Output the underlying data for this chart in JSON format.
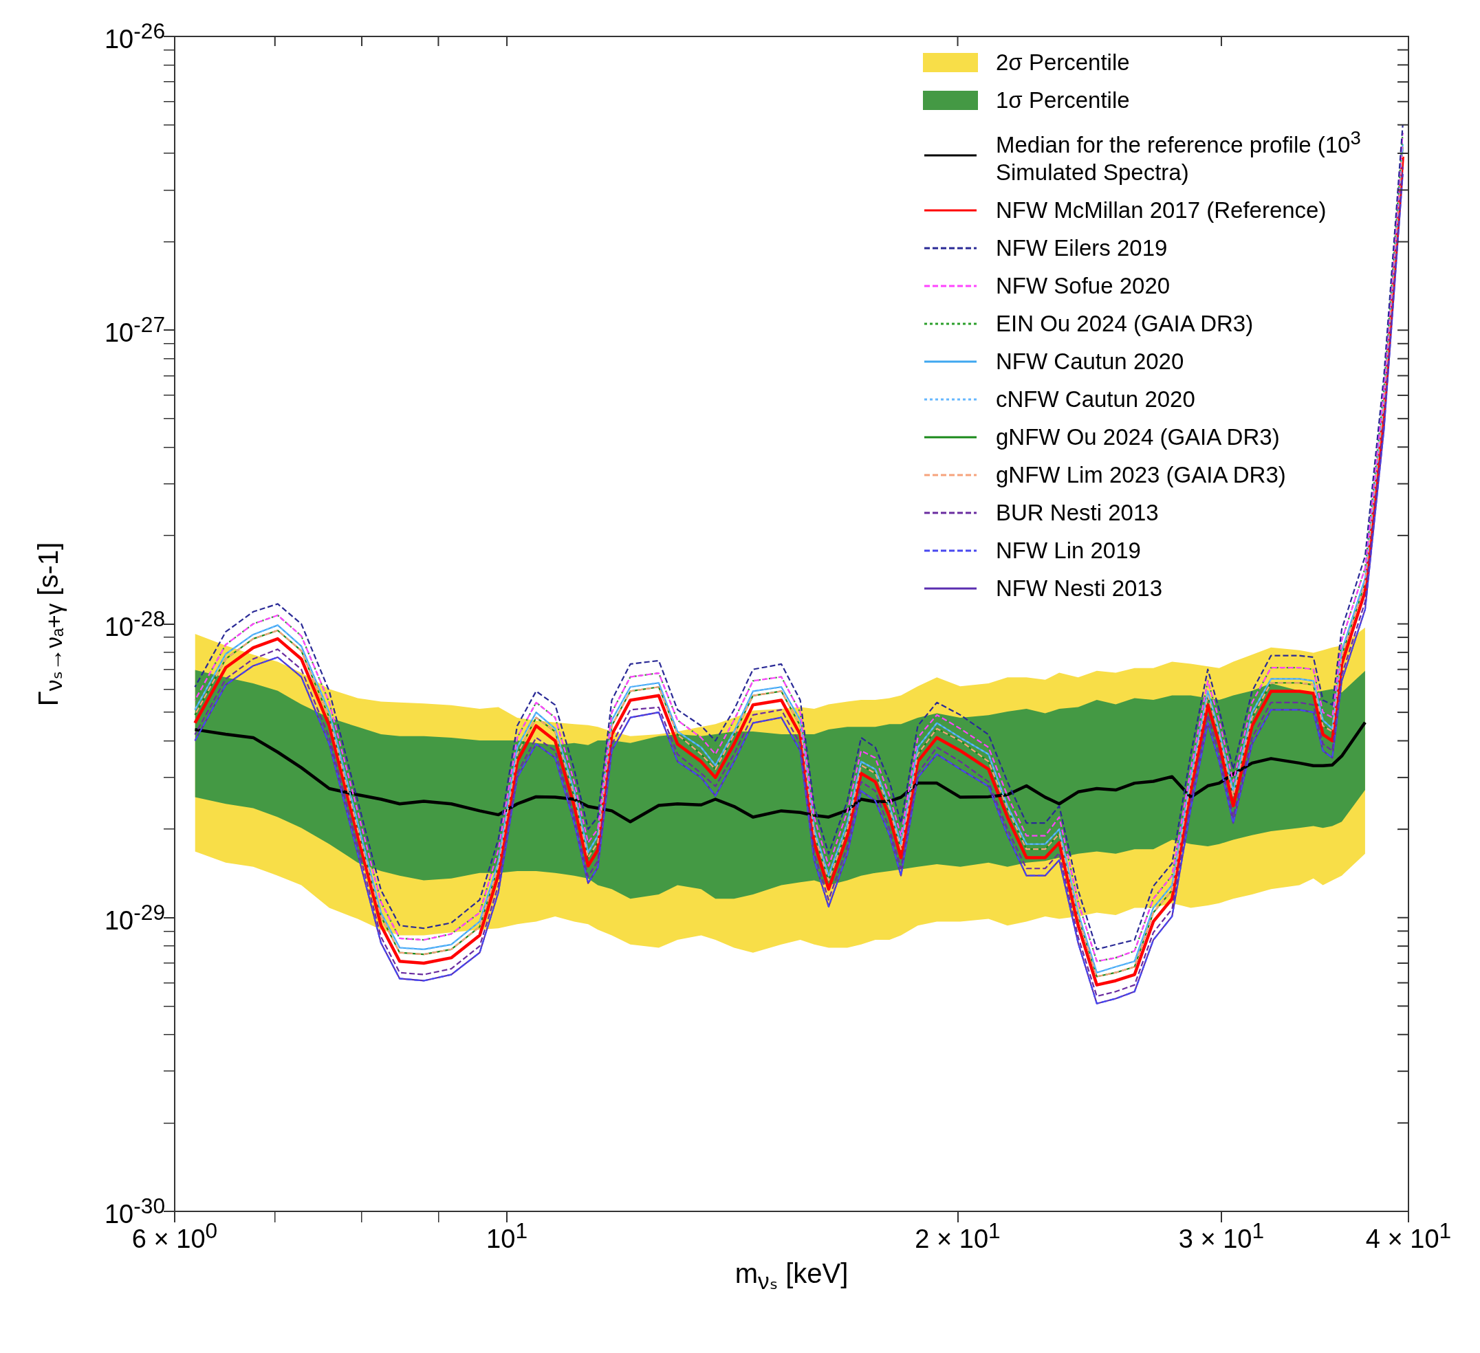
{
  "chart_data": {
    "type": "line",
    "xlabel": "m$_{νₛ}$ [keV]",
    "ylabel": "Γ$_{νₛ→νₐ+γ}$ [s-1]",
    "log": "xy",
    "grid": false,
    "legend": "top right",
    "xlim": [
      6,
      40
    ],
    "ylim": [
      1e-30,
      1e-26
    ],
    "xticks": [
      {
        "value": 6,
        "label": "6 × 10$^{0}$"
      },
      {
        "value": 7,
        "label": null
      },
      {
        "value": 8,
        "label": null
      },
      {
        "value": 9,
        "label": null
      },
      {
        "value": 10,
        "label": "10$^{1}$"
      },
      {
        "value": 20,
        "label": "2 × 10$^{1}$"
      },
      {
        "value": 30,
        "label": "3 × 10$^{1}$"
      },
      {
        "value": 40,
        "label": "4 × 10$^{1}$"
      }
    ],
    "yticks": [
      {
        "value": 1e-30,
        "label": "10$^{-30}$"
      },
      {
        "value": 2e-30,
        "label": null
      },
      {
        "value": 3e-30,
        "label": null
      },
      {
        "value": 4e-30,
        "label": null
      },
      {
        "value": 5e-30,
        "label": null
      },
      {
        "value": 6e-30,
        "label": null
      },
      {
        "value": 7e-30,
        "label": null
      },
      {
        "value": 8e-30,
        "label": null
      },
      {
        "value": 9e-30,
        "label": null
      },
      {
        "value": 1e-29,
        "label": "10$^{-29}$"
      },
      {
        "value": 2e-29,
        "label": null
      },
      {
        "value": 3e-29,
        "label": null
      },
      {
        "value": 4e-29,
        "label": null
      },
      {
        "value": 5e-29,
        "label": null
      },
      {
        "value": 6e-29,
        "label": null
      },
      {
        "value": 7e-29,
        "label": null
      },
      {
        "value": 8e-29,
        "label": null
      },
      {
        "value": 9e-29,
        "label": null
      },
      {
        "value": 1e-28,
        "label": "10$^{-28}$"
      },
      {
        "value": 2e-28,
        "label": null
      },
      {
        "value": 3e-28,
        "label": null
      },
      {
        "value": 4e-28,
        "label": null
      },
      {
        "value": 5e-28,
        "label": null
      },
      {
        "value": 6e-28,
        "label": null
      },
      {
        "value": 7e-28,
        "label": null
      },
      {
        "value": 8e-28,
        "label": null
      },
      {
        "value": 9e-28,
        "label": null
      },
      {
        "value": 1e-27,
        "label": "10$^{-27}$"
      },
      {
        "value": 2e-27,
        "label": null
      },
      {
        "value": 3e-27,
        "label": null
      },
      {
        "value": 4e-27,
        "label": null
      },
      {
        "value": 5e-27,
        "label": null
      },
      {
        "value": 6e-27,
        "label": null
      },
      {
        "value": 7e-27,
        "label": null
      },
      {
        "value": 8e-27,
        "label": null
      },
      {
        "value": 9e-27,
        "label": null
      },
      {
        "value": 1e-26,
        "label": "10$^{-26}$"
      }
    ],
    "x": [
      6.19,
      6.49,
      6.77,
      7.03,
      7.29,
      7.61,
      7.95,
      8.24,
      8.48,
      8.8,
      9.18,
      9.59,
      9.87,
      10.16,
      10.46,
      10.77,
      11.09,
      11.33,
      11.5,
      11.75,
      12.09,
      12.63,
      13.0,
      13.48,
      13.78,
      14.18,
      14.6,
      15.25,
      15.7,
      16.04,
      16.4,
      16.88,
      17.24,
      17.62,
      18.01,
      18.33,
      18.81,
      19.37,
      20.08,
      20.97,
      21.59,
      22.23,
      22.88,
      23.38,
      24.07,
      24.77,
      25.5,
      26.25,
      27.02,
      27.81,
      28.62,
      29.38,
      29.9,
      30.55,
      31.45,
      32.38,
      33.82,
      34.56,
      35.07,
      35.58,
      36.1,
      37.42,
      38.52,
      39.65
    ],
    "series": [
      {
        "name": "2σ Percentile",
        "type": "area",
        "color": "#f8de48",
        "values": [
          null,
          null,
          null,
          null,
          null,
          null,
          null,
          null,
          null,
          null,
          null,
          null,
          null,
          null,
          null,
          null,
          null,
          null,
          null,
          null,
          null,
          null,
          null,
          null,
          null,
          null,
          null,
          null,
          null,
          null,
          null,
          null,
          null,
          null,
          null,
          null,
          null,
          null,
          null,
          null,
          null,
          null,
          null,
          null,
          null,
          null,
          null,
          null,
          null,
          null,
          null,
          null,
          null,
          null,
          null,
          null,
          null,
          null,
          null,
          null,
          null,
          null,
          null,
          null
        ],
        "upper": [
          9.25e-29,
          8.44e-29,
          7.86e-29,
          7.43e-29,
          6.82e-29,
          6e-29,
          5.59e-29,
          5.44e-29,
          5.4e-29,
          5.36e-29,
          5.29e-29,
          5.14e-29,
          5.21e-29,
          4.79e-29,
          4.69e-29,
          4.62e-29,
          4.56e-29,
          4.52e-29,
          4.46e-29,
          4.3e-29,
          4.15e-29,
          4.21e-29,
          4.3e-29,
          4.46e-29,
          4.56e-29,
          4.79e-29,
          5.07e-29,
          5.14e-29,
          5.21e-29,
          5.14e-29,
          5.32e-29,
          5.44e-29,
          5.51e-29,
          5.51e-29,
          5.59e-29,
          5.71e-29,
          6.13e-29,
          6.58e-29,
          6.13e-29,
          6.27e-29,
          6.58e-29,
          6.58e-29,
          6.45e-29,
          6.82e-29,
          6.58e-29,
          6.92e-29,
          6.82e-29,
          7.07e-29,
          7.07e-29,
          7.43e-29,
          7.32e-29,
          7.17e-29,
          7.07e-29,
          7.43e-29,
          7.86e-29,
          8.32e-29,
          8.14e-29,
          7.97e-29,
          8.14e-29,
          8.32e-29,
          8.44e-29,
          9.72e-29,
          null,
          null
        ],
        "lower": [
          1.68e-29,
          1.54e-29,
          1.49e-29,
          1.39e-29,
          1.29e-29,
          1.08e-29,
          9.9e-30,
          9.1e-30,
          8.7e-30,
          8.7e-30,
          8.9e-30,
          9.1e-30,
          9.2e-30,
          9.5e-30,
          9.7e-30,
          1.01e-29,
          9.7e-30,
          9.5e-30,
          9.1e-30,
          8.7e-30,
          8.1e-30,
          7.9e-30,
          8.4e-30,
          8.7e-30,
          8.4e-30,
          7.9e-30,
          7.6e-30,
          8.1e-30,
          8.4e-30,
          8.1e-30,
          7.9e-30,
          7.9e-30,
          8.1e-30,
          8.4e-30,
          8.4e-30,
          8.7e-30,
          9.4e-30,
          9.7e-30,
          9.7e-30,
          9.9e-30,
          9.4e-30,
          9.7e-30,
          1.01e-29,
          9.9e-30,
          1.01e-29,
          1.04e-29,
          1.02e-29,
          1.08e-29,
          1.08e-29,
          1.12e-29,
          1.08e-29,
          1.1e-29,
          1.12e-29,
          1.16e-29,
          1.2e-29,
          1.25e-29,
          1.29e-29,
          1.36e-29,
          1.29e-29,
          1.34e-29,
          1.39e-29,
          1.65e-29,
          null,
          null
        ]
      },
      {
        "name": "1σ Percentile",
        "type": "area",
        "color": "#449944",
        "values": [
          null,
          null,
          null,
          null,
          null,
          null,
          null,
          null,
          null,
          null,
          null,
          null,
          null,
          null,
          null,
          null,
          null,
          null,
          null,
          null,
          null,
          null,
          null,
          null,
          null,
          null,
          null,
          null,
          null,
          null,
          null,
          null,
          null,
          null,
          null,
          null,
          null,
          null,
          null,
          null,
          null,
          null,
          null,
          null,
          null,
          null,
          null,
          null,
          null,
          null,
          null,
          null,
          null,
          null,
          null,
          null,
          null,
          null,
          null,
          null,
          null,
          null,
          null,
          null
        ],
        "upper": [
          6.97e-29,
          6.58e-29,
          6.27e-29,
          5.92e-29,
          5.32e-29,
          4.79e-29,
          4.46e-29,
          4.21e-29,
          4.15e-29,
          4.15e-29,
          4.1e-29,
          4.01e-29,
          4.01e-29,
          4.01e-29,
          3.93e-29,
          3.87e-29,
          3.93e-29,
          3.87e-29,
          4.01e-29,
          4.01e-29,
          3.93e-29,
          4.15e-29,
          4.21e-29,
          4.15e-29,
          4.21e-29,
          4.3e-29,
          4.3e-29,
          4.21e-29,
          4.21e-29,
          4.21e-29,
          4.37e-29,
          4.46e-29,
          4.46e-29,
          4.46e-29,
          4.56e-29,
          4.56e-29,
          4.79e-29,
          4.96e-29,
          4.79e-29,
          4.89e-29,
          5.03e-29,
          5.14e-29,
          4.96e-29,
          5.14e-29,
          5.21e-29,
          5.51e-29,
          5.32e-29,
          5.59e-29,
          5.51e-29,
          5.71e-29,
          5.71e-29,
          5.59e-29,
          5.51e-29,
          5.71e-29,
          5.92e-29,
          6.27e-29,
          5.92e-29,
          5.84e-29,
          5.92e-29,
          6e-29,
          5.84e-29,
          6.92e-29,
          null,
          null
        ],
        "lower": [
          2.57e-29,
          2.44e-29,
          2.36e-29,
          2.2e-29,
          2.02e-29,
          1.78e-29,
          1.54e-29,
          1.44e-29,
          1.39e-29,
          1.34e-29,
          1.36e-29,
          1.42e-29,
          1.42e-29,
          1.44e-29,
          1.44e-29,
          1.42e-29,
          1.39e-29,
          1.36e-29,
          1.29e-29,
          1.25e-29,
          1.16e-29,
          1.2e-29,
          1.29e-29,
          1.25e-29,
          1.16e-29,
          1.16e-29,
          1.2e-29,
          1.29e-29,
          1.32e-29,
          1.34e-29,
          1.29e-29,
          1.34e-29,
          1.39e-29,
          1.42e-29,
          1.44e-29,
          1.46e-29,
          1.49e-29,
          1.52e-29,
          1.49e-29,
          1.54e-29,
          1.49e-29,
          1.54e-29,
          1.56e-29,
          1.6e-29,
          1.65e-29,
          1.68e-29,
          1.65e-29,
          1.71e-29,
          1.71e-29,
          1.84e-29,
          1.78e-29,
          1.75e-29,
          1.78e-29,
          1.84e-29,
          1.91e-29,
          1.97e-29,
          2.02e-29,
          2.05e-29,
          2.02e-29,
          2.05e-29,
          2.12e-29,
          2.72e-29,
          null,
          null
        ]
      },
      {
        "name": "Median for the reference profile (10$^{3}$ Simulated Spectra)",
        "type": "line",
        "color": "#000000",
        "line_style": "solid",
        "values": [
          4.37e-29,
          4.21e-29,
          4.1e-29,
          3.66e-29,
          3.24e-29,
          2.75e-29,
          2.62e-29,
          2.53e-29,
          2.44e-29,
          2.49e-29,
          2.44e-29,
          2.31e-29,
          2.24e-29,
          2.44e-29,
          2.58e-29,
          2.57e-29,
          2.53e-29,
          2.39e-29,
          2.36e-29,
          2.31e-29,
          2.12e-29,
          2.41e-29,
          2.44e-29,
          2.42e-29,
          2.53e-29,
          2.39e-29,
          2.2e-29,
          2.31e-29,
          2.28e-29,
          2.23e-29,
          2.2e-29,
          2.32e-29,
          2.53e-29,
          2.48e-29,
          2.49e-29,
          2.57e-29,
          2.87e-29,
          2.87e-29,
          2.57e-29,
          2.58e-29,
          2.62e-29,
          2.81e-29,
          2.57e-29,
          2.44e-29,
          2.68e-29,
          2.75e-29,
          2.72e-29,
          2.87e-29,
          2.91e-29,
          3.02e-29,
          2.57e-29,
          2.81e-29,
          2.87e-29,
          3.08e-29,
          3.36e-29,
          3.48e-29,
          3.36e-29,
          3.29e-29,
          3.29e-29,
          3.31e-29,
          3.55e-29,
          4.62e-29,
          null,
          null
        ]
      },
      {
        "name": "NFW McMillan 2017 (Reference)",
        "type": "line",
        "color": "#ff0000",
        "line_style": "solid",
        "values": [
          4.6e-29,
          7.1e-29,
          8.3e-29,
          8.9e-29,
          7.6e-29,
          4.5e-29,
          1.9e-29,
          9.4e-30,
          7.1e-30,
          7e-30,
          7.3e-30,
          8.7e-30,
          1.4e-29,
          3.4e-29,
          4.5e-29,
          4e-29,
          2.4e-29,
          1.5e-29,
          1.7e-29,
          4.2e-29,
          5.5e-29,
          5.7e-29,
          3.9e-29,
          3.4e-29,
          3e-29,
          3.9e-29,
          5.3e-29,
          5.5e-29,
          4.2e-29,
          1.8e-29,
          1.25e-29,
          1.9e-29,
          3.1e-29,
          2.9e-29,
          2.2e-29,
          1.6e-29,
          3.4e-29,
          4.1e-29,
          3.7e-29,
          3.2e-29,
          2.2e-29,
          1.6e-29,
          1.6e-29,
          1.8e-29,
          9.4e-30,
          5.9e-30,
          6.1e-30,
          6.4e-30,
          9.7e-30,
          1.16e-29,
          2.7e-29,
          5.3e-29,
          3.9e-29,
          2.4e-29,
          4.5e-29,
          5.9e-29,
          5.9e-29,
          5.8e-29,
          4.2e-29,
          4e-29,
          7.3e-29,
          1.29e-28,
          5.3e-28,
          3.9e-27
        ]
      },
      {
        "name": "NFW Eilers 2019",
        "type": "line",
        "color": "#2a2a96",
        "line_style": "dashed",
        "values": [
          6.1e-29,
          9.4e-29,
          1.1e-28,
          1.17e-28,
          1e-28,
          5.9e-29,
          2.5e-29,
          1.24e-29,
          9.4e-30,
          9.2e-30,
          9.6e-30,
          1.15e-29,
          1.85e-29,
          4.5e-29,
          5.9e-29,
          5.3e-29,
          3.2e-29,
          2e-29,
          2.2e-29,
          5.5e-29,
          7.3e-29,
          7.5e-29,
          5.1e-29,
          4.5e-29,
          4e-29,
          5.1e-29,
          7e-29,
          7.3e-29,
          5.5e-29,
          2.4e-29,
          1.65e-29,
          2.5e-29,
          4.1e-29,
          3.8e-29,
          2.9e-29,
          2.1e-29,
          4.5e-29,
          5.4e-29,
          4.9e-29,
          4.2e-29,
          2.9e-29,
          2.1e-29,
          2.1e-29,
          2.4e-29,
          1.24e-29,
          7.8e-30,
          8.1e-30,
          8.4e-30,
          1.28e-29,
          1.53e-29,
          3.6e-29,
          7e-29,
          5.1e-29,
          3.2e-29,
          5.9e-29,
          7.8e-29,
          7.8e-29,
          7.7e-29,
          5.5e-29,
          5.3e-29,
          9.6e-29,
          1.7e-28,
          7e-28,
          5e-27
        ]
      },
      {
        "name": "NFW Sofue 2020",
        "type": "line",
        "color": "#ff44ff",
        "line_style": "dashed",
        "values": [
          5.5e-29,
          8.5e-29,
          1e-28,
          1.07e-28,
          9.1e-29,
          5.4e-29,
          2.3e-29,
          1.13e-29,
          8.5e-30,
          8.4e-30,
          8.8e-30,
          1.04e-29,
          1.7e-29,
          4.1e-29,
          5.4e-29,
          4.8e-29,
          2.9e-29,
          1.8e-29,
          2e-29,
          5e-29,
          6.6e-29,
          6.8e-29,
          4.7e-29,
          4.1e-29,
          3.6e-29,
          4.7e-29,
          6.4e-29,
          6.6e-29,
          5e-29,
          2.2e-29,
          1.5e-29,
          2.3e-29,
          3.7e-29,
          3.5e-29,
          2.6e-29,
          1.9e-29,
          4.1e-29,
          4.9e-29,
          4.4e-29,
          3.8e-29,
          2.6e-29,
          1.9e-29,
          1.9e-29,
          2.2e-29,
          1.13e-29,
          7.1e-30,
          7.3e-30,
          7.7e-30,
          1.16e-29,
          1.39e-29,
          3.2e-29,
          6.4e-29,
          4.7e-29,
          2.9e-29,
          5.4e-29,
          7.1e-29,
          7.1e-29,
          7e-29,
          5e-29,
          4.8e-29,
          8.8e-29,
          1.55e-28,
          6.4e-28,
          4.7e-27
        ]
      },
      {
        "name": "EIN Ou 2024 (GAIA DR3)",
        "type": "line",
        "color": "#2ca02c",
        "line_style": "dotted",
        "values": [
          5.5e-29,
          8.5e-29,
          1e-28,
          1.07e-28,
          9.1e-29,
          5.4e-29,
          2.3e-29,
          1.13e-29,
          8.5e-30,
          8.4e-30,
          8.8e-30,
          1.04e-29,
          1.7e-29,
          4.1e-29,
          5.4e-29,
          4.8e-29,
          2.9e-29,
          1.8e-29,
          2e-29,
          5e-29,
          6.6e-29,
          6.8e-29,
          4.7e-29,
          4.1e-29,
          3.6e-29,
          4.7e-29,
          6.4e-29,
          6.6e-29,
          5e-29,
          2.2e-29,
          1.5e-29,
          2.3e-29,
          3.7e-29,
          3.5e-29,
          2.6e-29,
          1.9e-29,
          4.1e-29,
          4.9e-29,
          4.4e-29,
          3.8e-29,
          2.6e-29,
          1.9e-29,
          1.9e-29,
          2.2e-29,
          1.13e-29,
          7.1e-30,
          7.3e-30,
          7.7e-30,
          1.16e-29,
          1.39e-29,
          3.2e-29,
          6.4e-29,
          4.7e-29,
          2.9e-29,
          5.4e-29,
          7.1e-29,
          7.1e-29,
          7e-29,
          5e-29,
          4.8e-29,
          8.8e-29,
          1.55e-28,
          6.4e-28,
          4.7e-27
        ]
      },
      {
        "name": "NFW Cautun 2020",
        "type": "line",
        "color": "#3fa7f0",
        "line_style": "solid",
        "values": [
          5.1e-29,
          7.9e-29,
          9.2e-29,
          9.9e-29,
          8.4e-29,
          5e-29,
          2.1e-29,
          1.04e-29,
          7.9e-30,
          7.8e-30,
          8.1e-30,
          9.7e-30,
          1.55e-29,
          3.8e-29,
          5e-29,
          4.4e-29,
          2.7e-29,
          1.67e-29,
          1.9e-29,
          4.7e-29,
          6.1e-29,
          6.3e-29,
          4.3e-29,
          3.8e-29,
          3.3e-29,
          4.3e-29,
          5.9e-29,
          6.1e-29,
          4.7e-29,
          2e-29,
          1.39e-29,
          2.1e-29,
          3.4e-29,
          3.2e-29,
          2.4e-29,
          1.78e-29,
          3.8e-29,
          4.6e-29,
          4.1e-29,
          3.6e-29,
          2.4e-29,
          1.78e-29,
          1.78e-29,
          2e-29,
          1.04e-29,
          6.5e-30,
          6.8e-30,
          7.1e-30,
          1.08e-29,
          1.29e-29,
          3e-29,
          5.9e-29,
          4.3e-29,
          2.7e-29,
          5e-29,
          6.5e-29,
          6.5e-29,
          6.4e-29,
          4.7e-29,
          4.4e-29,
          8.1e-29,
          1.43e-28,
          5.9e-28,
          4.3e-27
        ]
      },
      {
        "name": "cNFW Cautun 2020",
        "type": "line",
        "color": "#66b8ff",
        "line_style": "dotted",
        "values": [
          5.1e-29,
          7.9e-29,
          9.2e-29,
          9.9e-29,
          8.4e-29,
          5e-29,
          2.1e-29,
          1.04e-29,
          7.9e-30,
          7.8e-30,
          8.1e-30,
          9.7e-30,
          1.55e-29,
          3.8e-29,
          5e-29,
          4.4e-29,
          2.7e-29,
          1.67e-29,
          1.9e-29,
          4.7e-29,
          6.1e-29,
          6.3e-29,
          4.3e-29,
          3.8e-29,
          3.3e-29,
          4.3e-29,
          5.9e-29,
          6.1e-29,
          4.7e-29,
          2e-29,
          1.39e-29,
          2.1e-29,
          3.4e-29,
          3.2e-29,
          2.4e-29,
          1.78e-29,
          3.8e-29,
          4.6e-29,
          4.1e-29,
          3.6e-29,
          2.4e-29,
          1.78e-29,
          1.78e-29,
          2e-29,
          1.04e-29,
          6.5e-30,
          6.8e-30,
          7.1e-30,
          1.08e-29,
          1.29e-29,
          3e-29,
          5.9e-29,
          4.3e-29,
          2.7e-29,
          5e-29,
          6.5e-29,
          6.5e-29,
          6.4e-29,
          4.7e-29,
          4.4e-29,
          8.1e-29,
          1.43e-28,
          5.9e-28,
          4.3e-27
        ]
      },
      {
        "name": "gNFW Ou 2024 (GAIA DR3)",
        "type": "line",
        "color": "#1a8a1a",
        "line_style": "solid",
        "values": [
          4.9e-29,
          7.6e-29,
          8.9e-29,
          9.5e-29,
          8.1e-29,
          4.8e-29,
          2e-29,
          1.01e-29,
          7.6e-30,
          7.5e-30,
          7.8e-30,
          9.3e-30,
          1.5e-29,
          3.6e-29,
          4.8e-29,
          4.3e-29,
          2.6e-29,
          1.6e-29,
          1.8e-29,
          4.5e-29,
          5.9e-29,
          6.1e-29,
          4.2e-29,
          3.6e-29,
          3.2e-29,
          4.2e-29,
          5.7e-29,
          5.9e-29,
          4.5e-29,
          1.93e-29,
          1.34e-29,
          2e-29,
          3.3e-29,
          3.1e-29,
          2.35e-29,
          1.71e-29,
          3.6e-29,
          4.4e-29,
          4e-29,
          3.4e-29,
          2.35e-29,
          1.71e-29,
          1.71e-29,
          1.93e-29,
          1.01e-29,
          6.3e-30,
          6.5e-30,
          6.8e-30,
          1.04e-29,
          1.24e-29,
          2.9e-29,
          5.7e-29,
          4.2e-29,
          2.6e-29,
          4.8e-29,
          6.3e-29,
          6.3e-29,
          6.2e-29,
          4.5e-29,
          4.3e-29,
          7.8e-29,
          1.38e-28,
          5.7e-28,
          4.2e-27
        ]
      },
      {
        "name": "gNFW Lim 2023 (GAIA DR3)",
        "type": "line",
        "color": "#f6a37c",
        "line_style": "dashed",
        "values": [
          4.9e-29,
          7.6e-29,
          8.9e-29,
          9.5e-29,
          8.1e-29,
          4.8e-29,
          2e-29,
          1.01e-29,
          7.6e-30,
          7.5e-30,
          7.8e-30,
          9.3e-30,
          1.5e-29,
          3.6e-29,
          4.8e-29,
          4.3e-29,
          2.6e-29,
          1.6e-29,
          1.8e-29,
          4.5e-29,
          5.9e-29,
          6.1e-29,
          4.2e-29,
          3.6e-29,
          3.2e-29,
          4.2e-29,
          5.7e-29,
          5.9e-29,
          4.5e-29,
          1.93e-29,
          1.34e-29,
          2e-29,
          3.3e-29,
          3.1e-29,
          2.35e-29,
          1.71e-29,
          3.6e-29,
          4.4e-29,
          4e-29,
          3.4e-29,
          2.35e-29,
          1.71e-29,
          1.71e-29,
          1.93e-29,
          1.01e-29,
          6.3e-30,
          6.5e-30,
          6.8e-30,
          1.04e-29,
          1.24e-29,
          2.9e-29,
          5.7e-29,
          4.2e-29,
          2.6e-29,
          4.8e-29,
          6.3e-29,
          6.3e-29,
          6.2e-29,
          4.5e-29,
          4.3e-29,
          7.8e-29,
          1.38e-28,
          5.7e-28,
          4.2e-27
        ]
      },
      {
        "name": "BUR Nesti 2013",
        "type": "line",
        "color": "#6a2ca0",
        "line_style": "dashed",
        "values": [
          4.2e-29,
          6.5e-29,
          7.6e-29,
          8.2e-29,
          7e-29,
          4.1e-29,
          1.75e-29,
          8.6e-30,
          6.5e-30,
          6.4e-30,
          6.7e-30,
          8e-30,
          1.29e-29,
          3.1e-29,
          4.1e-29,
          3.7e-29,
          2.2e-29,
          1.38e-29,
          1.56e-29,
          3.9e-29,
          5.1e-29,
          5.2e-29,
          3.6e-29,
          3.1e-29,
          2.8e-29,
          3.6e-29,
          4.9e-29,
          5.1e-29,
          3.9e-29,
          1.66e-29,
          1.15e-29,
          1.75e-29,
          2.9e-29,
          2.7e-29,
          2e-29,
          1.47e-29,
          3.1e-29,
          3.8e-29,
          3.4e-29,
          2.9e-29,
          2e-29,
          1.47e-29,
          1.47e-29,
          1.66e-29,
          8.6e-30,
          5.4e-30,
          5.6e-30,
          5.9e-30,
          8.9e-30,
          1.07e-29,
          2.5e-29,
          4.9e-29,
          3.6e-29,
          2.2e-29,
          4.1e-29,
          5.4e-29,
          5.4e-29,
          5.3e-29,
          3.9e-29,
          3.7e-29,
          6.7e-29,
          1.19e-28,
          4.9e-28,
          3.6e-27
        ]
      },
      {
        "name": "NFW Lin 2019",
        "type": "line",
        "color": "#4848f0",
        "line_style": "dashed",
        "values": [
          4e-29,
          6.2e-29,
          7.2e-29,
          7.7e-29,
          6.6e-29,
          3.9e-29,
          1.65e-29,
          8.2e-30,
          6.2e-30,
          6.1e-30,
          6.4e-30,
          7.6e-30,
          1.22e-29,
          3e-29,
          3.9e-29,
          3.5e-29,
          2.1e-29,
          1.31e-29,
          1.48e-29,
          3.7e-29,
          4.8e-29,
          5e-29,
          3.4e-29,
          3e-29,
          2.6e-29,
          3.4e-29,
          4.6e-29,
          4.8e-29,
          3.7e-29,
          1.57e-29,
          1.09e-29,
          1.65e-29,
          2.7e-29,
          2.5e-29,
          1.91e-29,
          1.39e-29,
          3e-29,
          3.6e-29,
          3.2e-29,
          2.8e-29,
          1.91e-29,
          1.39e-29,
          1.39e-29,
          1.57e-29,
          8.2e-30,
          5.1e-30,
          5.3e-30,
          5.6e-30,
          8.4e-30,
          1.01e-29,
          2.35e-29,
          4.6e-29,
          3.4e-29,
          2.1e-29,
          3.9e-29,
          5.1e-29,
          5.1e-29,
          5e-29,
          3.7e-29,
          3.5e-29,
          6.4e-29,
          1.12e-28,
          4.6e-28,
          3.4e-27
        ]
      },
      {
        "name": "NFW Nesti 2013",
        "type": "line",
        "color": "#5a2eb0",
        "line_style": "solid",
        "values": [
          4e-29,
          6.2e-29,
          7.2e-29,
          7.7e-29,
          6.6e-29,
          3.9e-29,
          1.65e-29,
          8.2e-30,
          6.2e-30,
          6.1e-30,
          6.4e-30,
          7.6e-30,
          1.22e-29,
          3e-29,
          3.9e-29,
          3.5e-29,
          2.1e-29,
          1.31e-29,
          1.48e-29,
          3.7e-29,
          4.8e-29,
          5e-29,
          3.4e-29,
          3e-29,
          2.6e-29,
          3.4e-29,
          4.6e-29,
          4.8e-29,
          3.7e-29,
          1.57e-29,
          1.09e-29,
          1.65e-29,
          2.7e-29,
          2.5e-29,
          1.91e-29,
          1.39e-29,
          3e-29,
          3.6e-29,
          3.2e-29,
          2.8e-29,
          1.91e-29,
          1.39e-29,
          1.39e-29,
          1.57e-29,
          8.2e-30,
          5.1e-30,
          5.3e-30,
          5.6e-30,
          8.4e-30,
          1.01e-29,
          2.35e-29,
          4.6e-29,
          3.4e-29,
          2.1e-29,
          3.9e-29,
          5.1e-29,
          5.1e-29,
          5e-29,
          3.7e-29,
          3.5e-29,
          6.4e-29,
          1.12e-28,
          4.6e-28,
          3.4e-27
        ]
      }
    ]
  }
}
